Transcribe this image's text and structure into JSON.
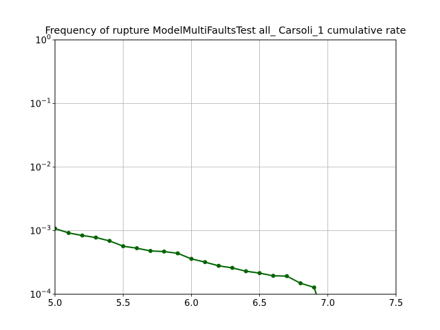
{
  "chart_data": {
    "type": "line",
    "title": "Frequency of rupture ModelMultiFaultsTest all_ Carsoli_1 cumulative rate",
    "xlabel": "",
    "ylabel": "",
    "xlim": [
      5.0,
      7.5
    ],
    "ylim": [
      0.0001,
      1
    ],
    "yscale": "log",
    "grid": true,
    "x_ticks": [
      5.0,
      5.5,
      6.0,
      6.5,
      7.0,
      7.5
    ],
    "x_tick_labels": [
      "5.0",
      "5.5",
      "6.0",
      "6.5",
      "7.0",
      "7.5"
    ],
    "y_ticks": [
      0.0001,
      0.001,
      0.01,
      0.1,
      1
    ],
    "y_tick_labels": [
      {
        "base": "10",
        "exp": "−4"
      },
      {
        "base": "10",
        "exp": "−3"
      },
      {
        "base": "10",
        "exp": "−2"
      },
      {
        "base": "10",
        "exp": "−1"
      },
      {
        "base": "10",
        "exp": "0"
      }
    ],
    "series": [
      {
        "color": "#006400",
        "x": [
          5.0,
          5.1,
          5.2,
          5.3,
          5.4,
          5.5,
          5.6,
          5.7,
          5.8,
          5.9,
          6.0,
          6.1,
          6.2,
          6.3,
          6.4,
          6.5,
          6.6,
          6.7,
          6.8,
          6.9,
          7.0
        ],
        "y": [
          0.00108,
          0.00092,
          0.00084,
          0.00078,
          0.00069,
          0.00057,
          0.00053,
          0.00048,
          0.00047,
          0.00044,
          0.00036,
          0.00032,
          0.00028,
          0.00026,
          0.00023,
          0.000215,
          0.000195,
          0.000193,
          0.000149,
          0.000128,
          2.6e-05
        ]
      }
    ]
  }
}
